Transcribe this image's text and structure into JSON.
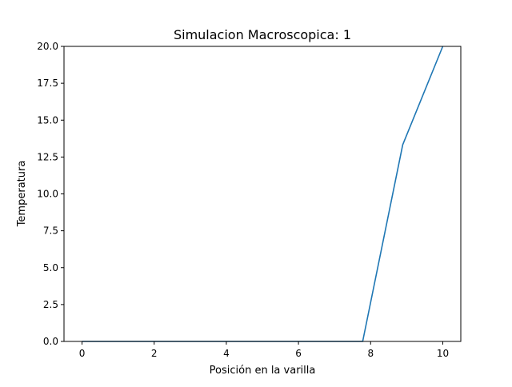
{
  "chart_data": {
    "type": "line",
    "title": "Simulacion Macroscopica: 1",
    "xlabel": "Posición en la varilla",
    "ylabel": "Temperatura",
    "xlim": [
      -0.5,
      10.5
    ],
    "ylim": [
      0,
      20
    ],
    "xticks": [
      0,
      2,
      4,
      6,
      8,
      10
    ],
    "xtick_labels": [
      "0",
      "2",
      "4",
      "6",
      "8",
      "10"
    ],
    "yticks": [
      0,
      2.5,
      5,
      7.5,
      10,
      12.5,
      15,
      17.5,
      20
    ],
    "ytick_labels": [
      "0.0",
      "2.5",
      "5.0",
      "7.5",
      "10.0",
      "12.5",
      "15.0",
      "17.5",
      "20.0"
    ],
    "grid": false,
    "series": [
      {
        "color": "#1f77b4",
        "x": [
          0,
          1.11,
          2.22,
          3.33,
          4.44,
          5.56,
          6.67,
          7.78,
          8.89,
          10
        ],
        "y": [
          0,
          0,
          0,
          0,
          0,
          0,
          0,
          0,
          13.33,
          20
        ]
      }
    ]
  }
}
